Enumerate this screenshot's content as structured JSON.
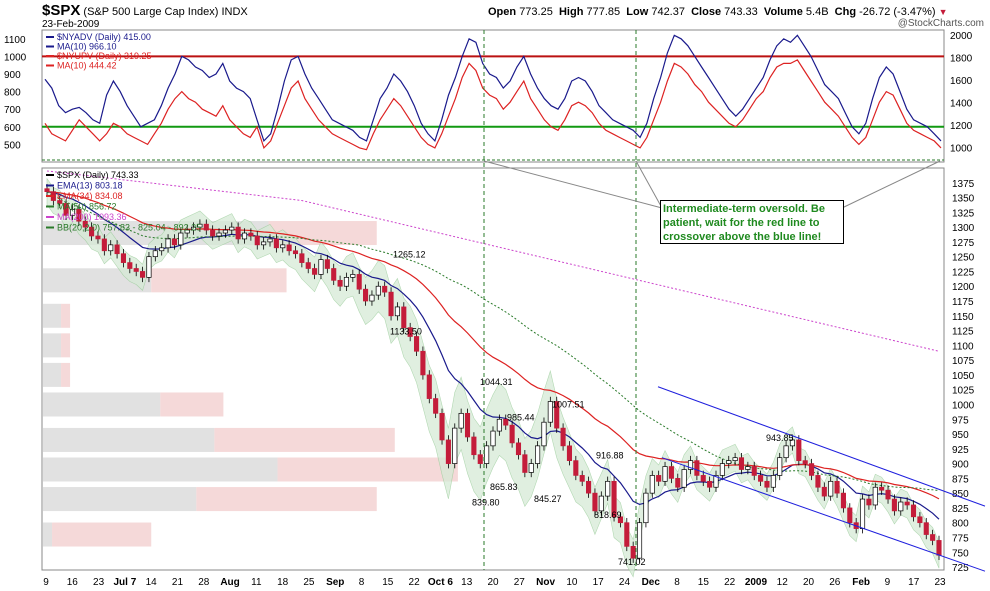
{
  "header": {
    "symbol": "$SPX",
    "description": "(S&P 500 Large Cap Index)",
    "exchange": "INDX",
    "date": "23-Feb-2009",
    "open_label": "Open",
    "open": "773.25",
    "high_label": "High",
    "high": "777.85",
    "low_label": "Low",
    "low": "742.37",
    "close_label": "Close",
    "close": "743.33",
    "volume_label": "Volume",
    "volume": "5.4B",
    "chg_label": "Chg",
    "chg": "-26.72 (-3.47%)",
    "chg_icon": "down-triangle-icon",
    "credit": "@StockCharts.com"
  },
  "annotation": "Intermediate-term oversold. Be patient, wait for the red line to crossover above the blue line!",
  "colors": {
    "up": "#ffffff",
    "down": "#c41c3a",
    "ema13": "#1a1a8c",
    "ema34": "#dd2222",
    "ma50": "#2a7a2a",
    "ma200": "#cc44cc",
    "bb_fill": "#d6ead6",
    "channel": "#1f1fdd",
    "nyadv": "#1a1a8c",
    "nyupv": "#dd2222",
    "green_line": "#119911",
    "red_line": "#bb1111"
  },
  "chart_data": [
    {
      "type": "line",
      "panel": "indicator",
      "legend": [
        "$NYADV (Daily) 415.00",
        "MA(10) 966.10",
        "$NYUPV (Daily) 319.25",
        "MA(10) 444.42"
      ],
      "left_ticks": [
        "1100",
        "1000",
        "900",
        "800",
        "700",
        "600",
        "500"
      ],
      "right_ticks": [
        "2000",
        "1800",
        "1600",
        "1400",
        "1200",
        "1000"
      ],
      "left_range": [
        400,
        1150
      ],
      "horizontal_lines": [
        {
          "value": 1000,
          "color": "red"
        },
        {
          "value": 600,
          "color": "green"
        }
      ],
      "series": [
        {
          "name": "MA(10) 966.10",
          "values": [
            870,
            820,
            720,
            680,
            700,
            710,
            680,
            640,
            620,
            780,
            860,
            800,
            720,
            660,
            600,
            620,
            640,
            720,
            820,
            900,
            1000,
            980,
            940,
            920,
            880,
            900,
            960,
            860,
            820,
            800,
            760,
            640,
            520,
            560,
            700,
            860,
            980,
            1000,
            900,
            820,
            760,
            700,
            640,
            620,
            600,
            580,
            540,
            520,
            640,
            760,
            820,
            900,
            860,
            800,
            720,
            620,
            560,
            520,
            640,
            780,
            880,
            1000,
            1100,
            1080,
            960,
            900,
            880,
            820,
            860,
            940,
            1000,
            900,
            820,
            760,
            720,
            700,
            760,
            860,
            880,
            860,
            800,
            720,
            680,
            640,
            620,
            600,
            580,
            540,
            620,
            760,
            880,
            1020,
            1120,
            1100,
            1060,
            1000,
            940,
            880,
            820,
            760,
            700,
            660,
            700,
            760,
            820,
            880,
            980,
            1060,
            1100,
            1080,
            1120,
            1060,
            1000,
            920,
            840,
            800,
            760,
            680,
            600,
            560,
            620,
            760,
            880,
            940,
            900,
            800,
            700,
            640,
            620,
            600,
            560,
            520
          ]
        },
        {
          "name": "MA(10) 444.42",
          "values": [
            620,
            560,
            540,
            520,
            580,
            640,
            600,
            560,
            520,
            560,
            620,
            600,
            560,
            540,
            520,
            500,
            560,
            620,
            700,
            760,
            800,
            760,
            740,
            700,
            680,
            660,
            720,
            640,
            600,
            560,
            540,
            600,
            480,
            520,
            620,
            720,
            820,
            860,
            760,
            700,
            640,
            600,
            560,
            540,
            520,
            500,
            480,
            470,
            560,
            640,
            700,
            760,
            720,
            660,
            600,
            540,
            500,
            480,
            560,
            660,
            760,
            880,
            960,
            920,
            820,
            780,
            760,
            700,
            740,
            800,
            860,
            760,
            700,
            640,
            600,
            580,
            640,
            720,
            740,
            720,
            680,
            620,
            580,
            560,
            540,
            520,
            500,
            480,
            540,
            640,
            740,
            860,
            960,
            940,
            900,
            840,
            800,
            740,
            700,
            660,
            620,
            600,
            640,
            700,
            760,
            800,
            880,
            940,
            960,
            960,
            980,
            920,
            860,
            800,
            740,
            700,
            660,
            600,
            540,
            500,
            540,
            640,
            740,
            800,
            780,
            700,
            620,
            580,
            560,
            540,
            520,
            480
          ]
        }
      ]
    },
    {
      "type": "candlestick",
      "panel": "price",
      "legend": [
        "$SPX (Daily) 743.33",
        "EMA(13) 803.18",
        "EMA(34) 834.08",
        "MA(50) 856.72",
        "MA(200) 1093.36",
        "BB(20,2.0) 757.83 - 825.04 - 892.25"
      ],
      "ylim": [
        720,
        1400
      ],
      "y_ticks": [
        "1375",
        "1350",
        "1325",
        "1300",
        "1275",
        "1250",
        "1225",
        "1200",
        "1175",
        "1150",
        "1125",
        "1100",
        "1075",
        "1050",
        "1025",
        "1000",
        "975",
        "950",
        "925",
        "900",
        "875",
        "850",
        "825",
        "800",
        "775",
        "750",
        "725"
      ],
      "x_ticks": [
        "9",
        "16",
        "23",
        "Jul 7",
        "14",
        "21",
        "28",
        "Aug",
        "11",
        "18",
        "25",
        "Sep",
        "8",
        "15",
        "22",
        "Oct 6",
        "13",
        "20",
        "27",
        "Nov",
        "10",
        "17",
        "24",
        "Dec",
        "8",
        "15",
        "22",
        "2009",
        "12",
        "20",
        "26",
        "Feb",
        "9",
        "17",
        "23"
      ],
      "price_labels": [
        "1265.12",
        "1133.50",
        "1044.31",
        "985.44",
        "1007.51",
        "916.88",
        "865.83",
        "839.80",
        "845.27",
        "818.69",
        "741.02",
        "943.85"
      ],
      "close": [
        1360,
        1345,
        1340,
        1320,
        1330,
        1310,
        1300,
        1285,
        1280,
        1260,
        1270,
        1255,
        1240,
        1230,
        1225,
        1215,
        1250,
        1260,
        1265,
        1280,
        1270,
        1290,
        1295,
        1300,
        1305,
        1295,
        1285,
        1290,
        1295,
        1300,
        1280,
        1290,
        1285,
        1270,
        1275,
        1280,
        1265,
        1270,
        1260,
        1255,
        1240,
        1230,
        1220,
        1245,
        1230,
        1210,
        1200,
        1215,
        1220,
        1195,
        1175,
        1185,
        1200,
        1190,
        1150,
        1165,
        1130,
        1115,
        1090,
        1050,
        1010,
        985,
        940,
        900,
        960,
        985,
        945,
        915,
        900,
        930,
        955,
        975,
        965,
        935,
        915,
        885,
        900,
        930,
        970,
        1005,
        960,
        930,
        905,
        880,
        870,
        850,
        820,
        845,
        870,
        810,
        800,
        760,
        740,
        800,
        850,
        880,
        870,
        895,
        875,
        860,
        890,
        905,
        880,
        870,
        860,
        880,
        900,
        905,
        910,
        890,
        895,
        880,
        870,
        860,
        880,
        910,
        930,
        940,
        905,
        900,
        880,
        860,
        845,
        870,
        850,
        825,
        800,
        790,
        840,
        830,
        860,
        855,
        840,
        820,
        835,
        830,
        810,
        800,
        780,
        770,
        745
      ],
      "volume_profile_note": "horizontal volume-at-price bars on left"
    }
  ]
}
